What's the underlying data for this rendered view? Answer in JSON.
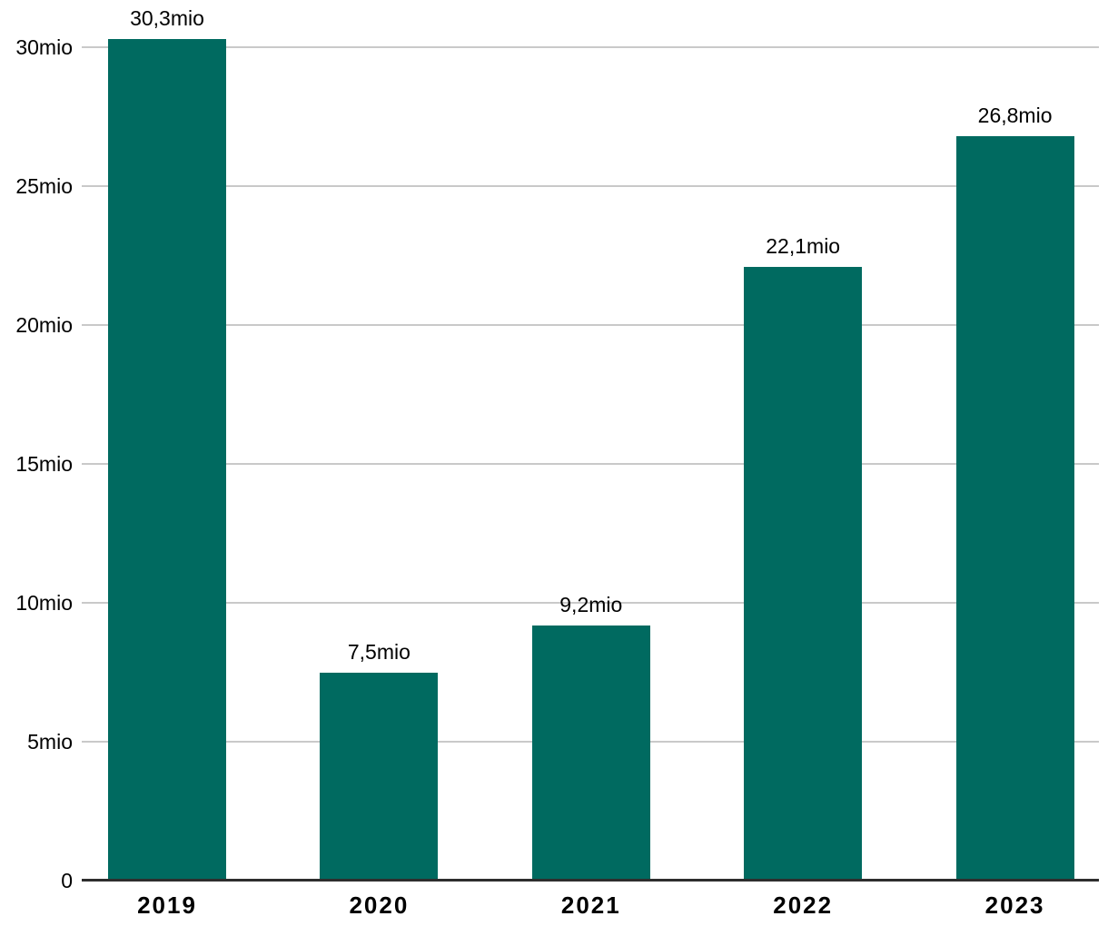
{
  "chart_data": {
    "type": "bar",
    "categories": [
      "2019",
      "2020",
      "2021",
      "2022",
      "2023"
    ],
    "values": [
      30.3,
      7.5,
      9.2,
      22.1,
      26.8
    ],
    "bar_labels": [
      "30,3mio",
      "7,5mio",
      "9,2mio",
      "22,1mio",
      "26,8mio"
    ],
    "title": "",
    "xlabel": "",
    "ylabel": "",
    "ylim": [
      0,
      31.7
    ],
    "yticks": [
      {
        "value": 0,
        "label": "0"
      },
      {
        "value": 5,
        "label": "5mio"
      },
      {
        "value": 10,
        "label": "10mio"
      },
      {
        "value": 15,
        "label": "15mio"
      },
      {
        "value": 20,
        "label": "20mio"
      },
      {
        "value": 25,
        "label": "25mio"
      },
      {
        "value": 30,
        "label": "30mio"
      }
    ],
    "grid": true,
    "legend": false,
    "colors": {
      "bar": "#006A60",
      "gridline": "#C9C9C9",
      "axis": "#2E2E2E",
      "text": "#000000"
    }
  }
}
